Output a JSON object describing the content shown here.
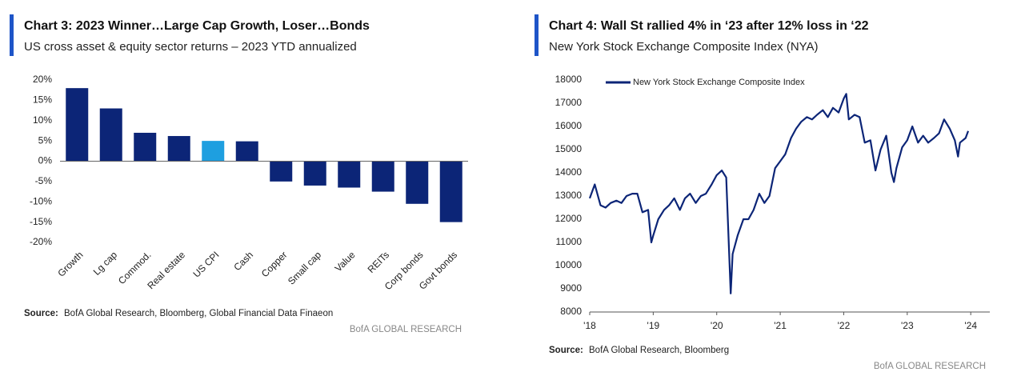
{
  "chart_data": [
    {
      "type": "bar",
      "title": "Chart 3: 2023 Winner…Large Cap Growth, Loser…Bonds",
      "subtitle": "US cross asset & equity sector returns – 2023 YTD annualized",
      "categories": [
        "Growth",
        "Lg cap",
        "Commod.",
        "Real estate",
        "US CPI",
        "Cash",
        "Copper",
        "Small cap",
        "Value",
        "REITs",
        "Corp bonds",
        "Govt bonds"
      ],
      "values": [
        18,
        13,
        7,
        6.2,
        5,
        4.9,
        -5,
        -6,
        -6.5,
        -7.5,
        -10.5,
        -15
      ],
      "colors": [
        "#0c2577",
        "#0c2577",
        "#0c2577",
        "#0c2577",
        "#1e9fe0",
        "#0c2577",
        "#0c2577",
        "#0c2577",
        "#0c2577",
        "#0c2577",
        "#0c2577",
        "#0c2577"
      ],
      "ylim": [
        -20,
        20
      ],
      "yticks": [
        {
          "value": 20,
          "label": "20%"
        },
        {
          "value": 15,
          "label": "15%"
        },
        {
          "value": 10,
          "label": "10%"
        },
        {
          "value": 5,
          "label": "5%"
        },
        {
          "value": 0,
          "label": "0%"
        },
        {
          "value": -5,
          "label": "-5%"
        },
        {
          "value": -10,
          "label": "-10%"
        },
        {
          "value": -15,
          "label": "-15%"
        },
        {
          "value": -20,
          "label": "-20%"
        }
      ],
      "source_label": "Source:",
      "source": "BofA Global Research, Bloomberg, Global Financial Data Finaeon",
      "footer": "BofA GLOBAL RESEARCH"
    },
    {
      "type": "line",
      "title": "Chart 4: Wall St rallied 4% in ‘23 after 12% loss in ‘22",
      "subtitle": "New York Stock Exchange Composite Index (NYA)",
      "x": [
        2018.0,
        2018.08,
        2018.17,
        2018.25,
        2018.33,
        2018.42,
        2018.5,
        2018.58,
        2018.67,
        2018.75,
        2018.83,
        2018.92,
        2018.97,
        2019.0,
        2019.08,
        2019.17,
        2019.25,
        2019.33,
        2019.42,
        2019.5,
        2019.58,
        2019.67,
        2019.75,
        2019.83,
        2019.92,
        2020.0,
        2020.08,
        2020.15,
        2020.22,
        2020.25,
        2020.33,
        2020.42,
        2020.5,
        2020.58,
        2020.67,
        2020.75,
        2020.83,
        2020.92,
        2021.0,
        2021.08,
        2021.17,
        2021.25,
        2021.33,
        2021.42,
        2021.5,
        2021.58,
        2021.67,
        2021.75,
        2021.83,
        2021.92,
        2022.0,
        2022.04,
        2022.08,
        2022.17,
        2022.25,
        2022.33,
        2022.42,
        2022.5,
        2022.58,
        2022.67,
        2022.75,
        2022.79,
        2022.83,
        2022.92,
        2023.0,
        2023.08,
        2023.17,
        2023.25,
        2023.33,
        2023.42,
        2023.5,
        2023.58,
        2023.67,
        2023.75,
        2023.8,
        2023.83,
        2023.92,
        2023.96
      ],
      "series": [
        {
          "name": "New York Stock Exchange Composite Index",
          "color": "#0c2577",
          "values": [
            12900,
            13500,
            12600,
            12500,
            12700,
            12800,
            12700,
            13000,
            13100,
            13100,
            12300,
            12400,
            11000,
            11300,
            12000,
            12400,
            12600,
            12900,
            12400,
            12900,
            13100,
            12700,
            13000,
            13100,
            13500,
            13900,
            14100,
            13800,
            8800,
            10500,
            11300,
            12000,
            12000,
            12400,
            13100,
            12700,
            13000,
            14200,
            14500,
            14800,
            15500,
            15900,
            16200,
            16400,
            16300,
            16500,
            16700,
            16400,
            16800,
            16600,
            17200,
            17400,
            16300,
            16500,
            16400,
            15300,
            15400,
            14100,
            15000,
            15600,
            14000,
            13600,
            14200,
            15100,
            15400,
            16000,
            15300,
            15600,
            15300,
            15500,
            15700,
            16300,
            15900,
            15400,
            14700,
            15300,
            15500,
            15800
          ]
        }
      ],
      "xlim": [
        2018,
        2024.3
      ],
      "xticks": [
        {
          "value": 2018,
          "label": "'18"
        },
        {
          "value": 2019,
          "label": "'19"
        },
        {
          "value": 2020,
          "label": "'20"
        },
        {
          "value": 2021,
          "label": "'21"
        },
        {
          "value": 2022,
          "label": "'22"
        },
        {
          "value": 2023,
          "label": "'23"
        },
        {
          "value": 2024,
          "label": "'24"
        }
      ],
      "ylim": [
        8000,
        18000
      ],
      "yticks": [
        8000,
        9000,
        10000,
        11000,
        12000,
        13000,
        14000,
        15000,
        16000,
        17000,
        18000
      ],
      "source_label": "Source:",
      "source": "BofA Global Research, Bloomberg",
      "footer": "BofA GLOBAL RESEARCH"
    }
  ]
}
